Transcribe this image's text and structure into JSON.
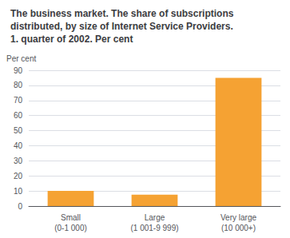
{
  "chart_data": {
    "type": "bar",
    "title": "The business market. The share of subscriptions\ndistributed, by size of Internet Service Providers.\n1. quarter of 2002. Per cent",
    "ylabel": "Per cent",
    "categories": [
      "Small\n(0-1 000)",
      "Large\n(1 001-9 999)",
      "Very large\n(10 000+)"
    ],
    "values": [
      10,
      7.5,
      85
    ],
    "color": "#F5A233",
    "ylim": [
      0,
      90
    ],
    "yticks": [
      0,
      10,
      20,
      30,
      40,
      50,
      60,
      70,
      80,
      90
    ],
    "grid": true
  }
}
